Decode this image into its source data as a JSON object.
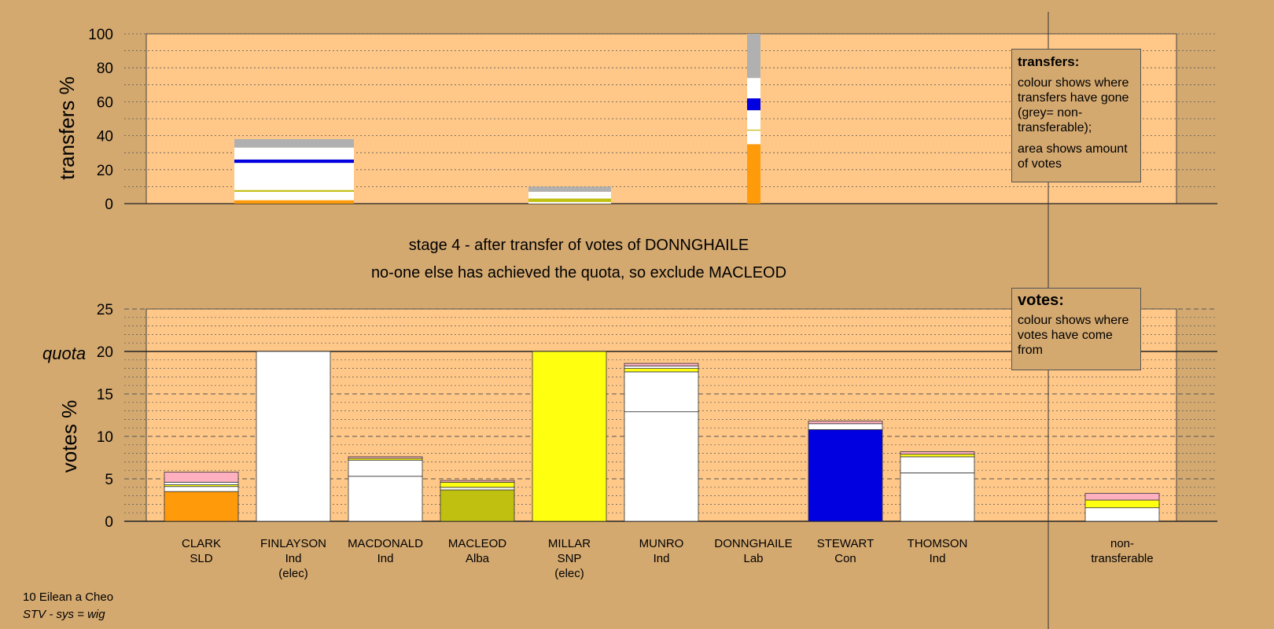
{
  "chart_data": [
    {
      "type": "bar",
      "title": "transfers",
      "ylabel": "transfers %",
      "ylim": [
        0,
        100
      ],
      "yticks": [
        0,
        20,
        40,
        60,
        80,
        100
      ],
      "grid": true,
      "bars": [
        {
          "segments": [
            {
              "color": "#ff9a0a",
              "value": 2
            },
            {
              "color": "#ffffff",
              "value": 5
            },
            {
              "color": "#c0c010",
              "value": 1
            },
            {
              "color": "#ffffff",
              "value": 16
            },
            {
              "color": "#0000e0",
              "value": 2
            },
            {
              "color": "#ffffff",
              "value": 7
            },
            {
              "color": "#b0b0b0",
              "value": 5
            }
          ]
        },
        {
          "segments": [
            {
              "color": "#ffffff",
              "value": 1
            },
            {
              "color": "#c0c010",
              "value": 2
            },
            {
              "color": "#ffffff",
              "value": 2
            },
            {
              "color": "#ffffff",
              "value": 2
            },
            {
              "color": "#b0b0b0",
              "value": 3
            }
          ]
        },
        {
          "segments": [
            {
              "color": "#ff9a0a",
              "value": 35
            },
            {
              "color": "#ffffff",
              "value": 8
            },
            {
              "color": "#c0c010",
              "value": 0.6
            },
            {
              "color": "#ffffff",
              "value": 11.4
            },
            {
              "color": "#0000e0",
              "value": 7
            },
            {
              "color": "#ffffff",
              "value": 12
            },
            {
              "color": "#b0b0b0",
              "value": 26
            }
          ]
        }
      ]
    },
    {
      "type": "bar",
      "ylabel": "votes %",
      "ylim": [
        0,
        25
      ],
      "yticks": [
        0,
        5,
        10,
        15,
        20,
        25
      ],
      "quota": 20,
      "quota_label": "quota",
      "grid": true,
      "categories": [
        {
          "name": "CLARK",
          "party": "SLD",
          "note": ""
        },
        {
          "name": "FINLAYSON",
          "party": "Ind",
          "note": "(elec)"
        },
        {
          "name": "MACDONALD",
          "party": "Ind",
          "note": ""
        },
        {
          "name": "MACLEOD",
          "party": "Alba",
          "note": ""
        },
        {
          "name": "MILLAR",
          "party": "SNP",
          "note": "(elec)"
        },
        {
          "name": "MUNRO",
          "party": "Ind",
          "note": ""
        },
        {
          "name": "DONNGHAILE",
          "party": "Lab",
          "note": ""
        },
        {
          "name": "STEWART",
          "party": "Con",
          "note": ""
        },
        {
          "name": "THOMSON",
          "party": "Ind",
          "note": ""
        }
      ],
      "nontransferable_label": [
        "non-",
        "transferable"
      ],
      "bars": [
        [
          {
            "color": "#ff9a0a",
            "value": 3.5
          },
          {
            "color": "#ffffff",
            "value": 0.6
          },
          {
            "color": "#ffff10",
            "value": 0.2
          },
          {
            "color": "#ffffff",
            "value": 0.3
          },
          {
            "color": "#ffb0c0",
            "value": 1.2
          }
        ],
        [
          {
            "color": "#ffffff",
            "value": 20
          }
        ],
        [
          {
            "color": "#ffffff",
            "value": 5.3
          },
          {
            "color": "#ffffff",
            "value": 1.9
          },
          {
            "color": "#ffff10",
            "value": 0.2
          },
          {
            "color": "#ffb0c0",
            "value": 0.2
          }
        ],
        [
          {
            "color": "#c0c010",
            "value": 3.7
          },
          {
            "color": "#ffffff",
            "value": 0.3
          },
          {
            "color": "#ffff10",
            "value": 0.6
          },
          {
            "color": "#ffb0c0",
            "value": 0.2
          }
        ],
        [
          {
            "color": "#ffff10",
            "value": 20
          }
        ],
        [
          {
            "color": "#ffffff",
            "value": 12.9
          },
          {
            "color": "#ffffff",
            "value": 4.7
          },
          {
            "color": "#ffff10",
            "value": 0.4
          },
          {
            "color": "#ffffff",
            "value": 0.3
          },
          {
            "color": "#ffb0c0",
            "value": 0.3
          }
        ],
        [],
        [
          {
            "color": "#0000e0",
            "value": 10.8
          },
          {
            "color": "#ffffff",
            "value": 0.7
          },
          {
            "color": "#ffb0c0",
            "value": 0.3
          }
        ],
        [
          {
            "color": "#ffffff",
            "value": 5.7
          },
          {
            "color": "#ffffff",
            "value": 1.9
          },
          {
            "color": "#ffff10",
            "value": 0.3
          },
          {
            "color": "#ffb0c0",
            "value": 0.3
          }
        ]
      ],
      "nontransferable": [
        {
          "color": "#ffffff",
          "value": 1.6
        },
        {
          "color": "#ffff10",
          "value": 0.9
        },
        {
          "color": "#ffb0c0",
          "value": 0.8
        }
      ]
    }
  ],
  "stage_line1": "stage 4 - after transfer of votes of DONNGHAILE",
  "stage_line2": "no-one else has achieved the quota, so exclude MACLEOD",
  "legend_transfers": {
    "title": "transfers:",
    "line1": "colour shows where transfers have gone (grey= non-transferable);",
    "line2": "area shows amount of votes"
  },
  "legend_votes": {
    "title": "votes:",
    "line1": "colour shows where votes have come from"
  },
  "footer": {
    "line1": "10 Eilean a Cheo",
    "line2": "STV - sys = wig"
  },
  "colors": {
    "background": "#d4a970",
    "plot_area": "#ffc888",
    "orange": "#ff9a0a",
    "olive": "#c0c010",
    "blue": "#0000e0",
    "yellow": "#ffff10",
    "pink": "#ffb0c0",
    "grey": "#b0b0b0"
  }
}
